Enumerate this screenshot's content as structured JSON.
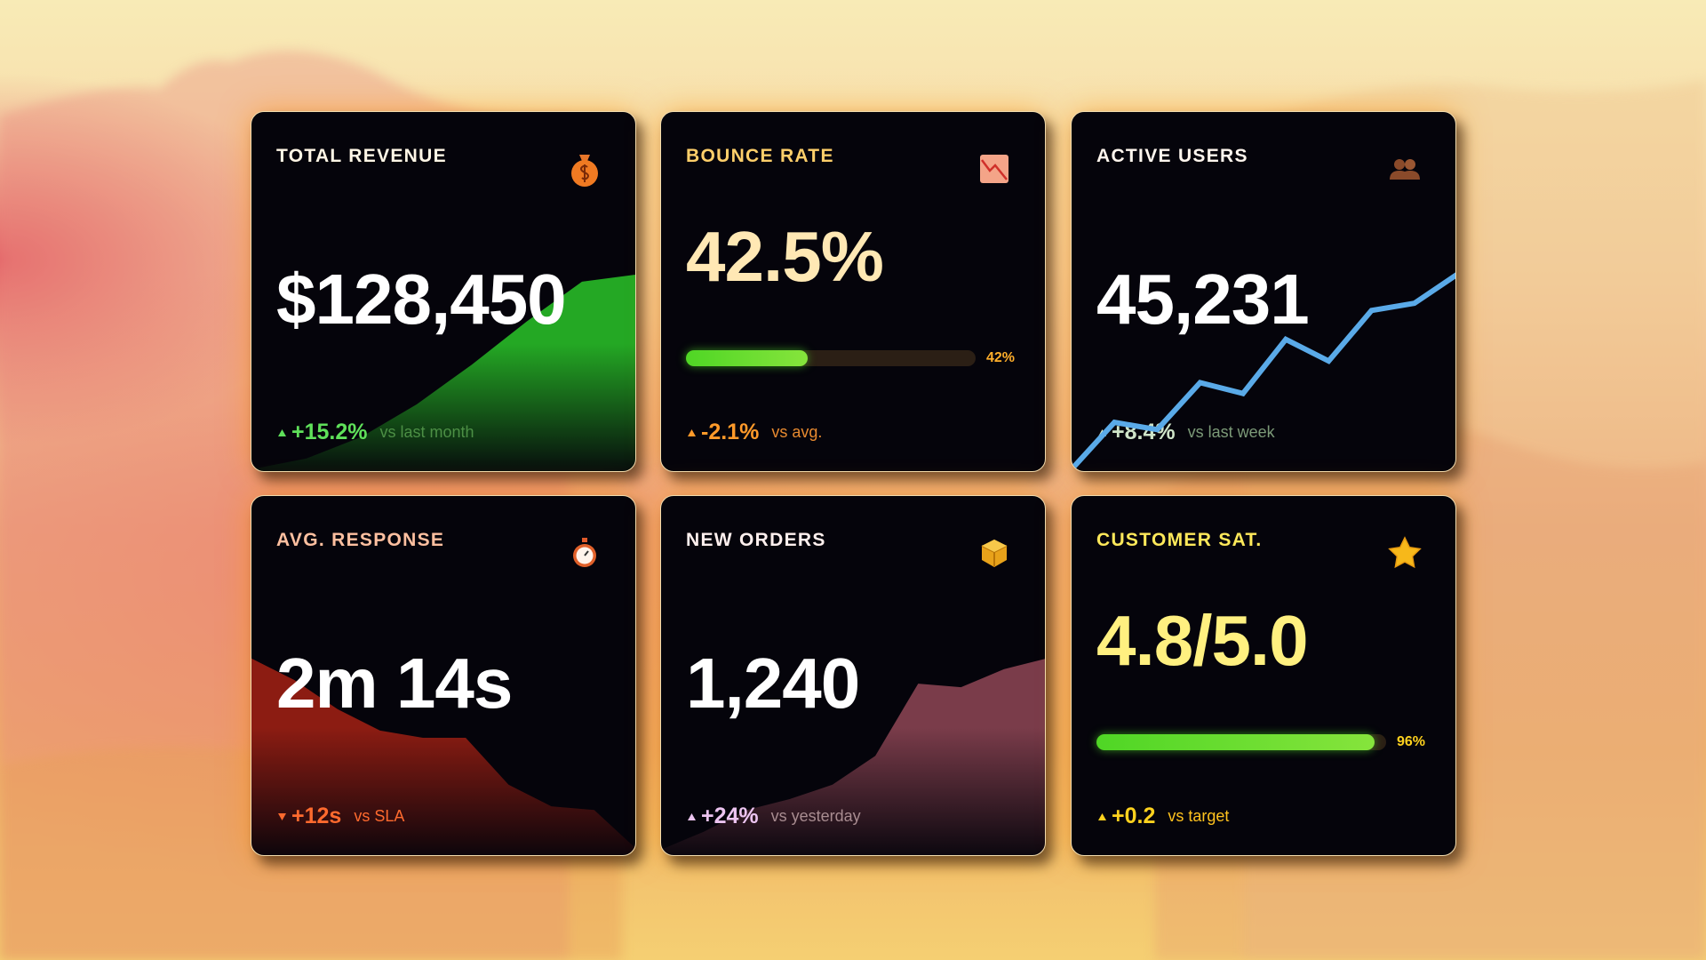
{
  "cards": [
    {
      "title": "TOTAL REVENUE",
      "value": "$128,450",
      "change": "+15.2%",
      "comparison": "vs last month",
      "direction": "up",
      "chart": {
        "type": "area",
        "values": [
          1,
          4,
          10,
          19,
          30,
          42,
          53,
          55
        ],
        "ylim": [
          0,
          100
        ],
        "color": "#24a824"
      }
    },
    {
      "title": "BOUNCE RATE",
      "value": "42.5%",
      "change": "-2.1%",
      "comparison": "vs avg.",
      "direction": "up",
      "chart": {
        "type": "progress",
        "values": [
          42
        ],
        "value_labels": [
          "42%"
        ],
        "xlim": [
          0,
          100
        ],
        "color": "#4fd625"
      }
    },
    {
      "title": "ACTIVE USERS",
      "value": "45,231",
      "change": "+8.4%",
      "comparison": "vs last week",
      "direction": "up",
      "chart": {
        "type": "line",
        "values": [
          1,
          14,
          12,
          25,
          22,
          37,
          31,
          45,
          47,
          55
        ],
        "ylim": [
          0,
          100
        ],
        "color": "#5aaae8"
      }
    },
    {
      "title": "AVG. RESPONSE",
      "value": "2m 14s",
      "change": "+12s",
      "comparison": "vs SLA",
      "direction": "down",
      "chart": {
        "type": "area",
        "values": [
          55,
          49,
          41,
          35,
          33,
          33,
          20,
          14,
          13,
          2
        ],
        "ylim": [
          0,
          100
        ],
        "color": "#8c1c12"
      }
    },
    {
      "title": "NEW ORDERS",
      "value": "1,240",
      "change": "+24%",
      "comparison": "vs yesterday",
      "direction": "up",
      "chart": {
        "type": "area",
        "values": [
          2,
          7,
          13,
          16,
          20,
          28,
          48,
          47,
          52,
          55
        ],
        "ylim": [
          0,
          100
        ],
        "color": "#7a3c4a"
      }
    },
    {
      "title": "CUSTOMER SAT.",
      "value": "4.8/5.0",
      "change": "+0.2",
      "comparison": "vs target",
      "direction": "up",
      "chart": {
        "type": "progress",
        "values": [
          96
        ],
        "value_labels": [
          "96%"
        ],
        "xlim": [
          0,
          100
        ],
        "color": "#4fd625"
      }
    }
  ]
}
